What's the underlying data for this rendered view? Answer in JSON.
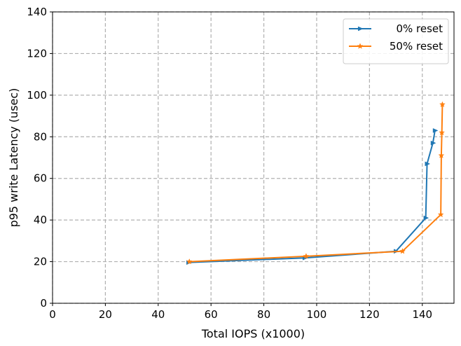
{
  "chart_data": {
    "type": "line",
    "title": "",
    "xlabel": "Total IOPS (x1000)",
    "ylabel": "p95 write Latency (usec)",
    "xlim": [
      0,
      152
    ],
    "ylim": [
      0,
      140
    ],
    "xticks": [
      0,
      20,
      40,
      60,
      80,
      100,
      120,
      140
    ],
    "yticks": [
      0,
      20,
      40,
      60,
      80,
      100,
      120,
      140
    ],
    "grid": true,
    "legend_position": "top-right",
    "series": [
      {
        "name": "0% reset",
        "color": "#1f77b4",
        "marker": "triangle-right",
        "x": [
          51.5,
          95.5,
          130,
          141.3,
          141.8,
          144,
          144.8
        ],
        "y": [
          19.6,
          21.8,
          25,
          41,
          67,
          77,
          83
        ]
      },
      {
        "name": "50% reset",
        "color": "#ff7f0e",
        "marker": "star",
        "x": [
          51.8,
          96,
          132.5,
          147,
          147.2,
          147.4,
          147.6
        ],
        "y": [
          20,
          22.6,
          25,
          42.6,
          71,
          82,
          95.5
        ]
      }
    ]
  }
}
